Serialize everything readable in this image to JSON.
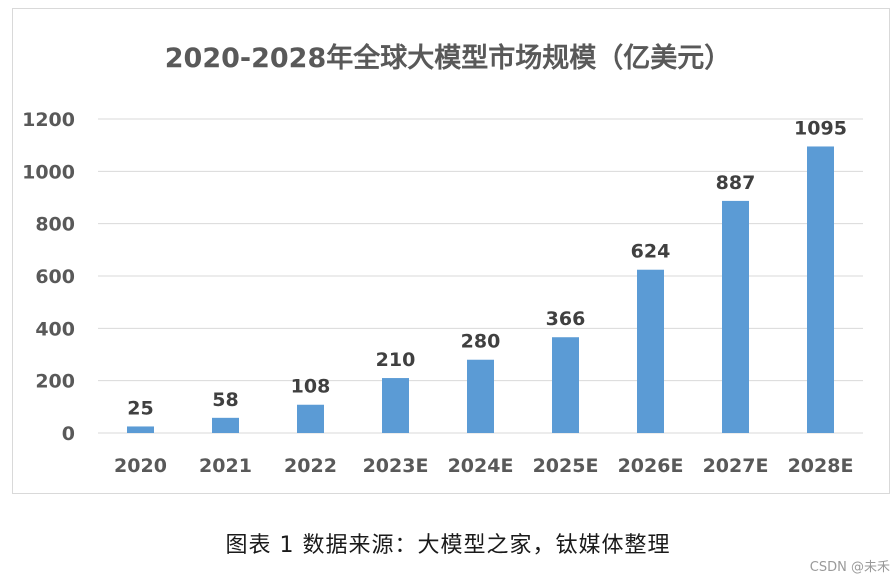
{
  "chart_data": {
    "type": "bar",
    "title": "2020-2028年全球大模型市场规模（亿美元）",
    "categories": [
      "2020",
      "2021",
      "2022",
      "2023E",
      "2024E",
      "2025E",
      "2026E",
      "2027E",
      "2028E"
    ],
    "values": [
      25,
      58,
      108,
      210,
      280,
      366,
      624,
      887,
      1095
    ],
    "data_labels": [
      "25",
      "58",
      "108",
      "210",
      "280",
      "366",
      "624",
      "887",
      "1095"
    ],
    "yticks": [
      0,
      200,
      400,
      600,
      800,
      1000,
      1200
    ],
    "ylim": [
      0,
      1200
    ],
    "grid": true,
    "bar_color": "#5b9bd5",
    "xlabel": "",
    "ylabel": ""
  },
  "caption": "图表 1 数据来源：大模型之家，钛媒体整理",
  "watermark": "CSDN @未禾"
}
